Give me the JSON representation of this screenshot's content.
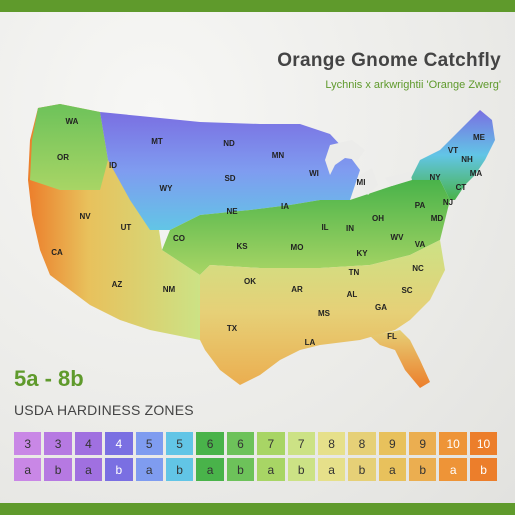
{
  "header": {
    "title": "Orange Gnome Catchfly",
    "subtitle": "Lychnis x arkwrightii 'Orange Zwerg'"
  },
  "zone_range": "5a - 8b",
  "legend": {
    "title": "USDA HARDINESS ZONES",
    "zones": [
      {
        "num": "3",
        "sub": "a",
        "color": "#c987e6"
      },
      {
        "num": "3",
        "sub": "b",
        "color": "#b679e2"
      },
      {
        "num": "4",
        "sub": "a",
        "color": "#a070e0"
      },
      {
        "num": "4",
        "sub": "b",
        "color": "#7a6fe2"
      },
      {
        "num": "5",
        "sub": "a",
        "color": "#7f9cf0"
      },
      {
        "num": "5",
        "sub": "b",
        "color": "#62c5e6"
      },
      {
        "num": "6",
        "sub": "a",
        "color": "#49b34a"
      },
      {
        "num": "6",
        "sub": "b",
        "color": "#6dc25a"
      },
      {
        "num": "7",
        "sub": "a",
        "color": "#a8d565"
      },
      {
        "num": "7",
        "sub": "b",
        "color": "#cce285"
      },
      {
        "num": "8",
        "sub": "a",
        "color": "#e6e08a"
      },
      {
        "num": "8",
        "sub": "b",
        "color": "#e6d077"
      },
      {
        "num": "9",
        "sub": "a",
        "color": "#e8c15c"
      },
      {
        "num": "9",
        "sub": "b",
        "color": "#ebae50"
      },
      {
        "num": "10",
        "sub": "a",
        "color": "#ee9437"
      },
      {
        "num": "10",
        "sub": "b",
        "color": "#ec7e2b"
      }
    ]
  },
  "map": {
    "states": [
      "WA",
      "OR",
      "CA",
      "NV",
      "ID",
      "MT",
      "WY",
      "UT",
      "AZ",
      "CO",
      "NM",
      "ND",
      "SD",
      "NE",
      "KS",
      "OK",
      "TX",
      "MN",
      "IA",
      "MO",
      "AR",
      "LA",
      "WI",
      "IL",
      "MI",
      "IN",
      "OH",
      "KY",
      "TN",
      "MS",
      "AL",
      "GA",
      "FL",
      "SC",
      "NC",
      "VA",
      "WV",
      "PA",
      "NY",
      "VT",
      "NH",
      "ME",
      "CT",
      "NJ",
      "MD",
      "MA"
    ]
  },
  "colors": {
    "accent": "#5f9a2c",
    "title": "#444444"
  }
}
